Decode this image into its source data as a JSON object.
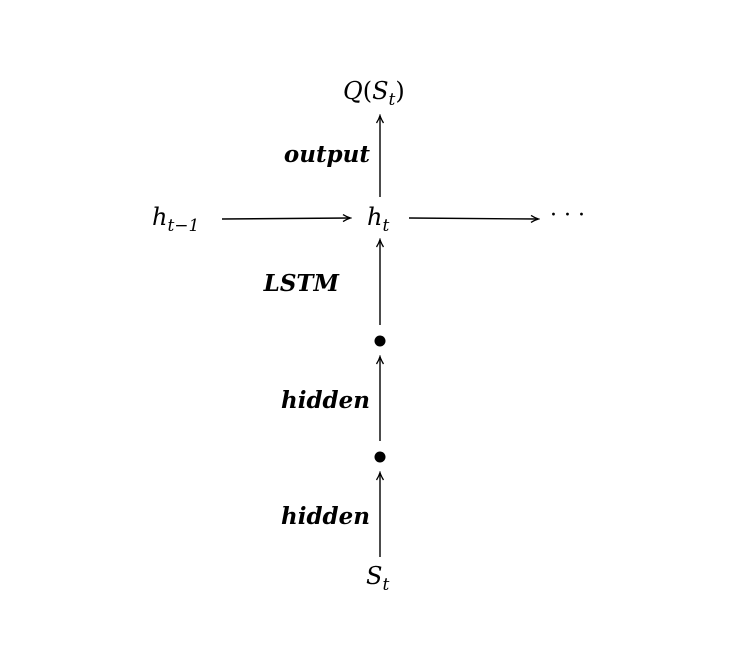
{
  "nodes": {
    "q_output": {
      "main": "Q",
      "open": "(",
      "var": "S",
      "sub": "t",
      "close": ")"
    },
    "h_prev": {
      "main": "h",
      "sub": "t−1"
    },
    "h_current": {
      "main": "h",
      "sub": "t"
    },
    "ellipsis": "· · ·",
    "s_input": {
      "main": "S",
      "sub": "t"
    }
  },
  "edge_labels": {
    "output": "output",
    "lstm": "LSTM",
    "hidden_upper": "hidden",
    "hidden_lower": "hidden"
  }
}
